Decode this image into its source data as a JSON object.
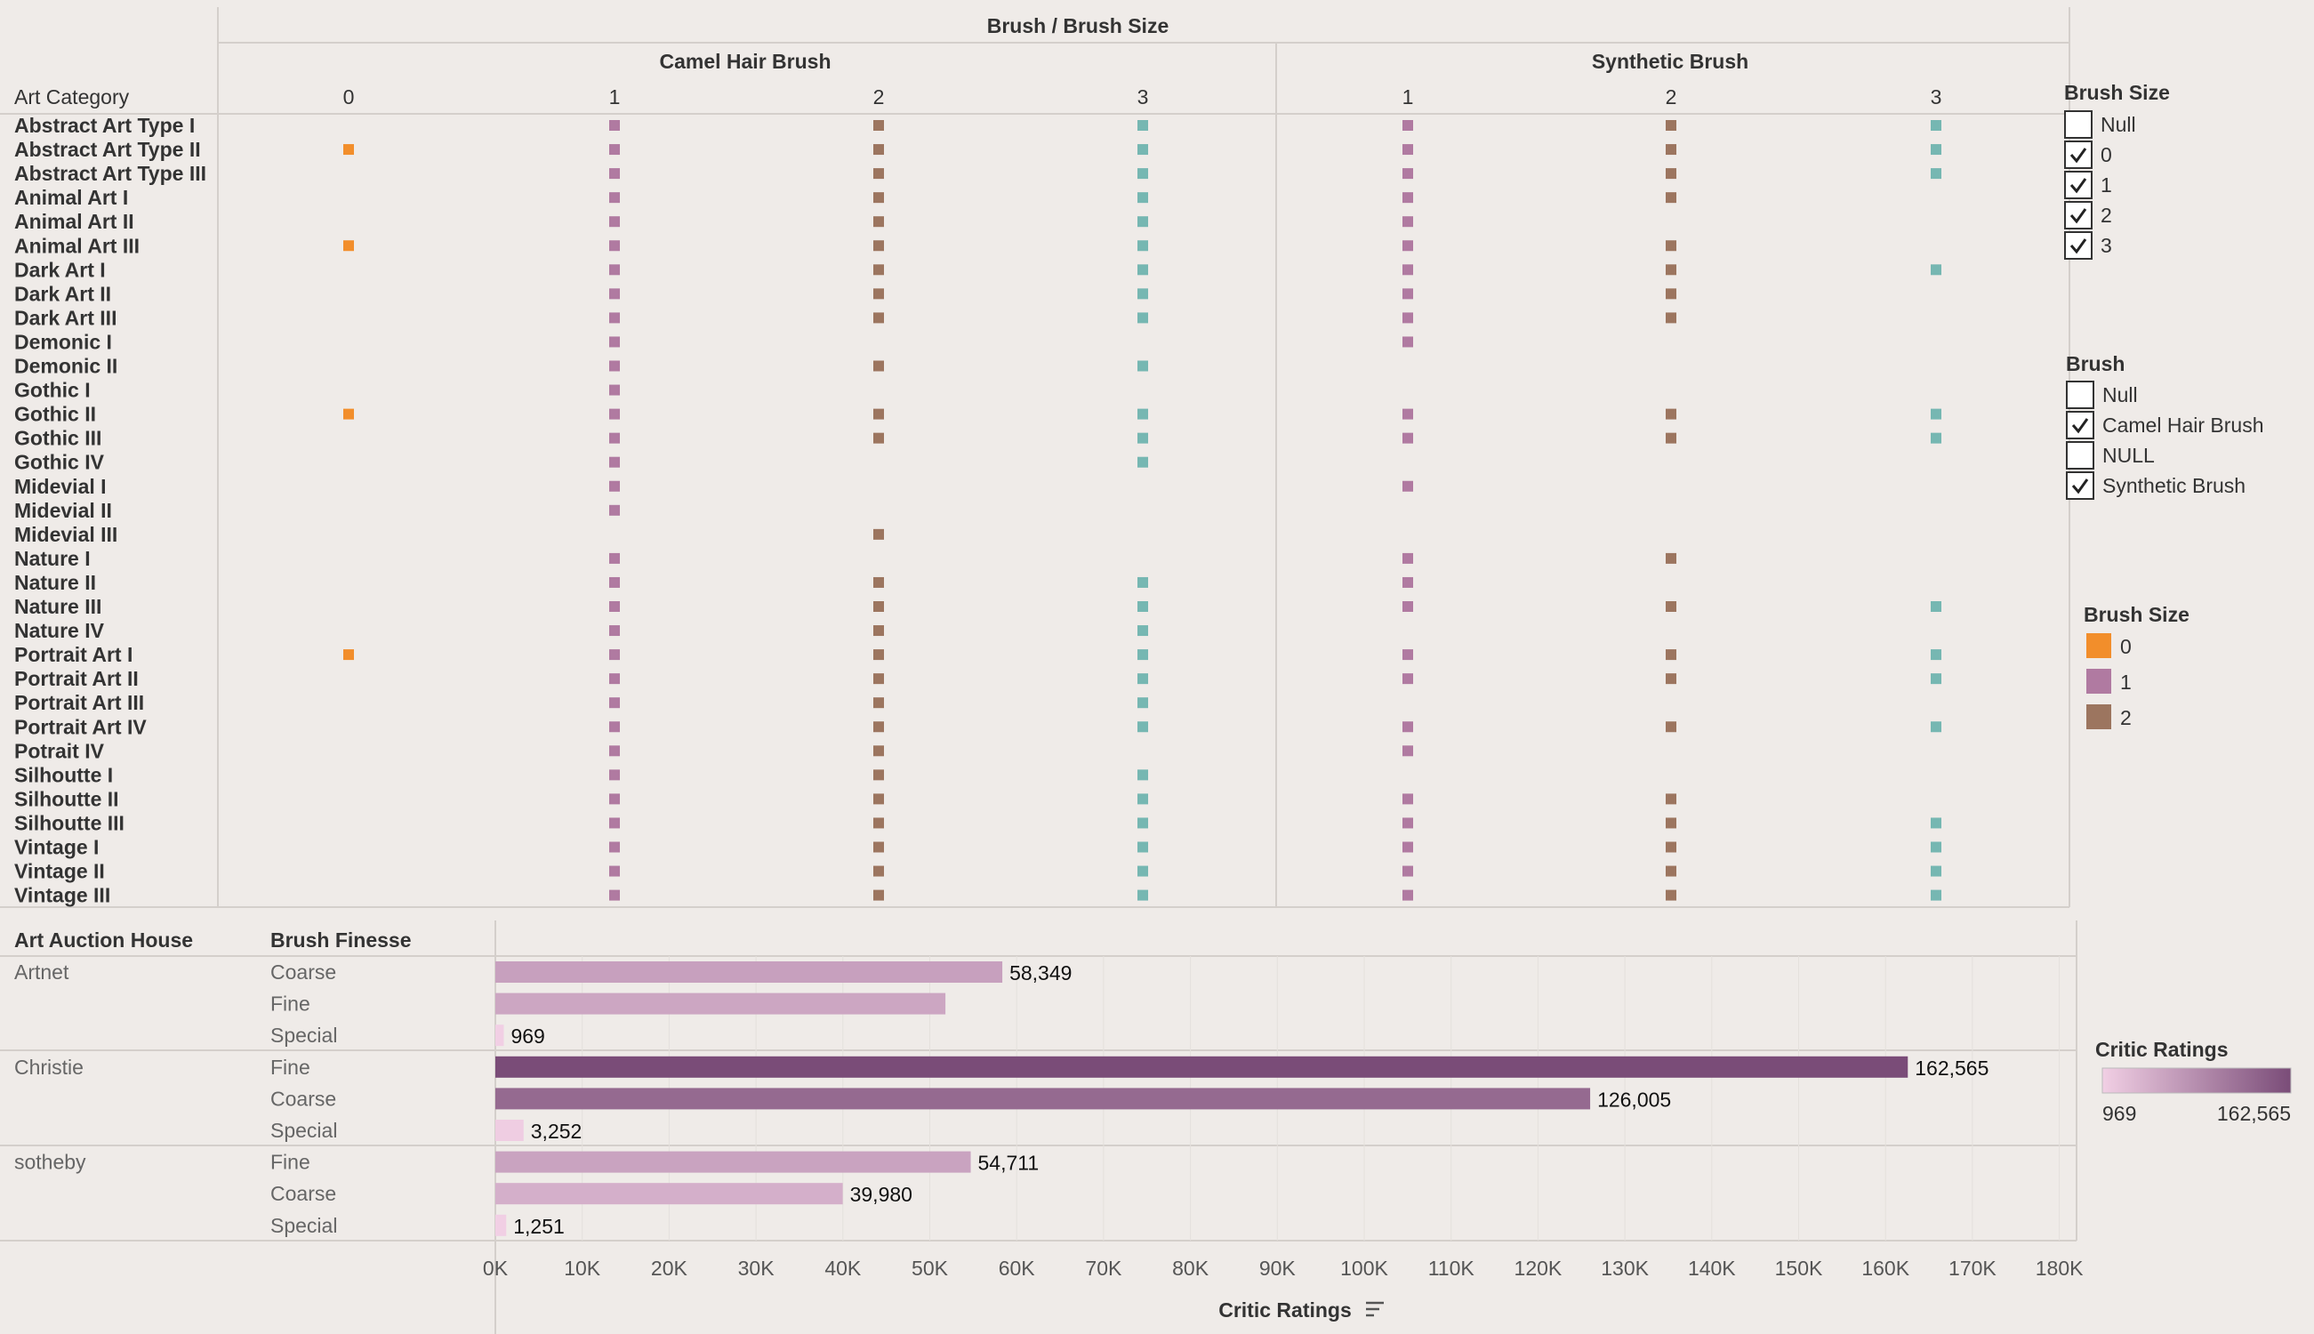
{
  "colors": {
    "background": "#efebe8",
    "divider": "#d4cfcb",
    "size_0": "#f28e2b",
    "size_1": "#b07aa1",
    "size_2": "#9c755f",
    "size_3": "#76b7b2",
    "rating_low": "#f1cfe4",
    "rating_high": "#7a4c78"
  },
  "chart_data": [
    {
      "type": "scatter",
      "title": "Brush / Brush Size",
      "row_header": "Art Category",
      "groups": [
        {
          "name": "Camel Hair Brush",
          "sizes": [
            "0",
            "1",
            "2",
            "3"
          ]
        },
        {
          "name": "Synthetic Brush",
          "sizes": [
            "1",
            "2",
            "3"
          ]
        }
      ],
      "categories": [
        "Abstract Art Type I",
        "Abstract Art Type II",
        "Abstract Art Type III",
        "Animal Art I",
        "Animal Art II",
        "Animal Art III",
        "Dark Art I",
        "Dark Art II",
        "Dark Art III",
        "Demonic I",
        "Demonic II",
        "Gothic I",
        "Gothic II",
        "Gothic III",
        "Gothic IV",
        "Midevial I",
        "Midevial II",
        "Midevial III",
        "Nature I",
        "Nature II",
        "Nature III",
        "Nature IV",
        "Portrait Art I",
        "Portrait Art II",
        "Portrait Art III",
        "Portrait Art IV",
        "Potrait IV",
        "Silhoutte I",
        "Silhoutte II",
        "Silhoutte III",
        "Vintage I",
        "Vintage II",
        "Vintage III"
      ],
      "presence": [
        [
          [
            0,
            1,
            1,
            1
          ],
          [
            1,
            1,
            1
          ]
        ],
        [
          [
            1,
            1,
            1,
            1
          ],
          [
            1,
            1,
            1
          ]
        ],
        [
          [
            0,
            1,
            1,
            1
          ],
          [
            1,
            1,
            1
          ]
        ],
        [
          [
            0,
            1,
            1,
            1
          ],
          [
            1,
            1,
            0
          ]
        ],
        [
          [
            0,
            1,
            1,
            1
          ],
          [
            1,
            0,
            0
          ]
        ],
        [
          [
            1,
            1,
            1,
            1
          ],
          [
            1,
            1,
            0
          ]
        ],
        [
          [
            0,
            1,
            1,
            1
          ],
          [
            1,
            1,
            1
          ]
        ],
        [
          [
            0,
            1,
            1,
            1
          ],
          [
            1,
            1,
            0
          ]
        ],
        [
          [
            0,
            1,
            1,
            1
          ],
          [
            1,
            1,
            0
          ]
        ],
        [
          [
            0,
            1,
            0,
            0
          ],
          [
            1,
            0,
            0
          ]
        ],
        [
          [
            0,
            1,
            1,
            1
          ],
          [
            0,
            0,
            0
          ]
        ],
        [
          [
            0,
            1,
            0,
            0
          ],
          [
            0,
            0,
            0
          ]
        ],
        [
          [
            1,
            1,
            1,
            1
          ],
          [
            1,
            1,
            1
          ]
        ],
        [
          [
            0,
            1,
            1,
            1
          ],
          [
            1,
            1,
            1
          ]
        ],
        [
          [
            0,
            1,
            0,
            1
          ],
          [
            0,
            0,
            0
          ]
        ],
        [
          [
            0,
            1,
            0,
            0
          ],
          [
            1,
            0,
            0
          ]
        ],
        [
          [
            0,
            1,
            0,
            0
          ],
          [
            0,
            0,
            0
          ]
        ],
        [
          [
            0,
            0,
            1,
            0
          ],
          [
            0,
            0,
            0
          ]
        ],
        [
          [
            0,
            1,
            0,
            0
          ],
          [
            1,
            1,
            0
          ]
        ],
        [
          [
            0,
            1,
            1,
            1
          ],
          [
            1,
            0,
            0
          ]
        ],
        [
          [
            0,
            1,
            1,
            1
          ],
          [
            1,
            1,
            1
          ]
        ],
        [
          [
            0,
            1,
            1,
            1
          ],
          [
            0,
            0,
            0
          ]
        ],
        [
          [
            1,
            1,
            1,
            1
          ],
          [
            1,
            1,
            1
          ]
        ],
        [
          [
            0,
            1,
            1,
            1
          ],
          [
            1,
            1,
            1
          ]
        ],
        [
          [
            0,
            1,
            1,
            1
          ],
          [
            0,
            0,
            0
          ]
        ],
        [
          [
            0,
            1,
            1,
            1
          ],
          [
            1,
            1,
            1
          ]
        ],
        [
          [
            0,
            1,
            1,
            0
          ],
          [
            1,
            0,
            0
          ]
        ],
        [
          [
            0,
            1,
            1,
            1
          ],
          [
            0,
            0,
            0
          ]
        ],
        [
          [
            0,
            1,
            1,
            1
          ],
          [
            1,
            1,
            0
          ]
        ],
        [
          [
            0,
            1,
            1,
            1
          ],
          [
            1,
            1,
            1
          ]
        ],
        [
          [
            0,
            1,
            1,
            1
          ],
          [
            1,
            1,
            1
          ]
        ],
        [
          [
            0,
            1,
            1,
            1
          ],
          [
            1,
            1,
            1
          ]
        ],
        [
          [
            0,
            1,
            1,
            1
          ],
          [
            1,
            1,
            1
          ]
        ]
      ]
    },
    {
      "type": "bar",
      "orientation": "horizontal",
      "row_headers": [
        "Art Auction House",
        "Brush Finesse"
      ],
      "xlabel": "Critic Ratings",
      "xlim": [
        0,
        180000
      ],
      "xticks": [
        "0K",
        "10K",
        "20K",
        "30K",
        "40K",
        "50K",
        "60K",
        "70K",
        "80K",
        "90K",
        "100K",
        "110K",
        "120K",
        "130K",
        "140K",
        "150K",
        "160K",
        "170K",
        "180K"
      ],
      "groups": [
        {
          "house": "Artnet",
          "rows": [
            {
              "finesse": "Coarse",
              "value": 58349,
              "label": "58,349"
            },
            {
              "finesse": "Fine",
              "value": 51800,
              "label": ""
            },
            {
              "finesse": "Special",
              "value": 969,
              "label": "969"
            }
          ]
        },
        {
          "house": "Christie",
          "rows": [
            {
              "finesse": "Fine",
              "value": 162565,
              "label": "162,565"
            },
            {
              "finesse": "Coarse",
              "value": 126005,
              "label": "126,005"
            },
            {
              "finesse": "Special",
              "value": 3252,
              "label": "3,252"
            }
          ]
        },
        {
          "house": "sotheby",
          "rows": [
            {
              "finesse": "Fine",
              "value": 54711,
              "label": "54,711"
            },
            {
              "finesse": "Coarse",
              "value": 39980,
              "label": "39,980"
            },
            {
              "finesse": "Special",
              "value": 1251,
              "label": "1,251"
            }
          ]
        }
      ]
    }
  ],
  "filters": {
    "brush_size": {
      "title": "Brush Size",
      "items": [
        {
          "label": "Null",
          "checked": false
        },
        {
          "label": "0",
          "checked": true
        },
        {
          "label": "1",
          "checked": true
        },
        {
          "label": "2",
          "checked": true
        },
        {
          "label": "3",
          "checked": true
        }
      ]
    },
    "brush": {
      "title": "Brush",
      "items": [
        {
          "label": "Null",
          "checked": false
        },
        {
          "label": "Camel Hair Brush",
          "checked": true
        },
        {
          "label": "NULL",
          "checked": false
        },
        {
          "label": "Synthetic Brush",
          "checked": true
        }
      ]
    }
  },
  "legends": {
    "brush_size": {
      "title": "Brush Size",
      "items": [
        {
          "label": "0",
          "color": "#f28e2b"
        },
        {
          "label": "1",
          "color": "#b07aa1"
        },
        {
          "label": "2",
          "color": "#9c755f"
        }
      ]
    },
    "critic_ratings": {
      "title": "Critic Ratings",
      "min_label": "969",
      "max_label": "162,565"
    }
  }
}
